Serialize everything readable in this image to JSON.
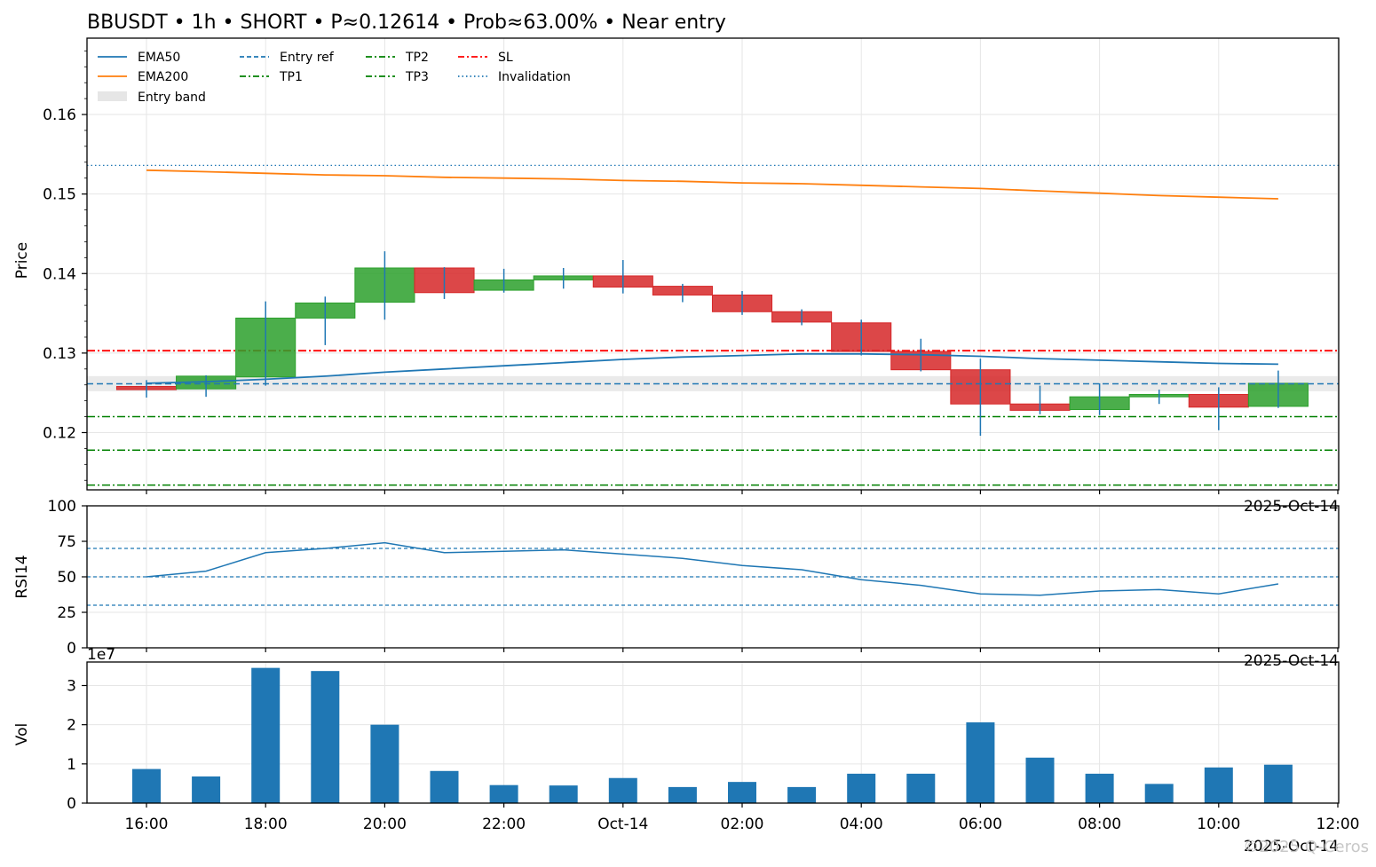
{
  "title": "BBUSDT • 1h • SHORT • P≈0.12614 • Prob≈63.00% • Near entry",
  "watermark": "©2025 Q-Ceros",
  "colors": {
    "bull": "#2ca02c",
    "bear": "#d62728",
    "wick": "#1f77b4",
    "ema50": "#1f77b4",
    "ema200": "#ff7f0e",
    "entry": "#1f77b4",
    "tp": "#008000",
    "sl": "#ff0000",
    "invalidation": "#1f77b4",
    "band": "#e6e6e6",
    "volume": "#1f77b4",
    "rsi": "#1f77b4"
  },
  "time_labels": [
    "16:00",
    "18:00",
    "20:00",
    "22:00",
    "Oct-14",
    "02:00",
    "04:00",
    "06:00",
    "08:00",
    "10:00",
    "12:00"
  ],
  "date_label": "2025-Oct-14",
  "chart_data": [
    {
      "type": "candlestick",
      "panel": "price",
      "ylabel": "Price",
      "ylim": [
        0.1128,
        0.1696
      ],
      "yticks": [
        "0.12",
        "0.13",
        "0.14",
        "0.15",
        "0.16"
      ],
      "x": [
        "16:00",
        "17:00",
        "18:00",
        "19:00",
        "20:00",
        "21:00",
        "22:00",
        "23:00",
        "00:00",
        "01:00",
        "02:00",
        "03:00",
        "04:00",
        "05:00",
        "06:00",
        "07:00",
        "08:00",
        "09:00",
        "10:00",
        "11:00"
      ],
      "open": [
        0.1258,
        0.1255,
        0.127,
        0.1344,
        0.1364,
        0.1407,
        0.1379,
        0.1392,
        0.1397,
        0.1384,
        0.1373,
        0.1352,
        0.1338,
        0.1302,
        0.1279,
        0.1236,
        0.1229,
        0.1245,
        0.1248,
        0.1233
      ],
      "high": [
        0.1266,
        0.1272,
        0.1365,
        0.1371,
        0.1428,
        0.1408,
        0.1406,
        0.1407,
        0.1417,
        0.1387,
        0.1378,
        0.1355,
        0.1342,
        0.1318,
        0.1293,
        0.1259,
        0.1262,
        0.1254,
        0.1257,
        0.1278
      ],
      "low": [
        0.1244,
        0.1245,
        0.1259,
        0.131,
        0.1342,
        0.1368,
        0.1376,
        0.1381,
        0.1375,
        0.1364,
        0.1348,
        0.1335,
        0.1297,
        0.1277,
        0.1196,
        0.1223,
        0.1222,
        0.1236,
        0.1203,
        0.1231
      ],
      "close": [
        0.1254,
        0.1271,
        0.1344,
        0.1363,
        0.1407,
        0.1376,
        0.1392,
        0.1397,
        0.1383,
        0.1373,
        0.1352,
        0.1339,
        0.1302,
        0.1279,
        0.1236,
        0.1228,
        0.1245,
        0.1248,
        0.1232,
        0.1262
      ],
      "ema50": [
        0.1262,
        0.1264,
        0.1267,
        0.1271,
        0.1276,
        0.128,
        0.1284,
        0.1288,
        0.1292,
        0.1295,
        0.1297,
        0.1299,
        0.1299,
        0.1298,
        0.1296,
        0.1293,
        0.1291,
        0.1289,
        0.1287,
        0.1286
      ],
      "ema200": [
        0.153,
        0.1528,
        0.1526,
        0.1524,
        0.1523,
        0.1521,
        0.152,
        0.1519,
        0.1517,
        0.1516,
        0.1514,
        0.1513,
        0.1511,
        0.1509,
        0.1507,
        0.1504,
        0.1501,
        0.1498,
        0.1496,
        0.1494
      ],
      "levels": {
        "entry_ref": 0.12614,
        "entry_band": [
          0.1252,
          0.1271
        ],
        "tp1": 0.122,
        "tp2": 0.1178,
        "tp3": 0.1134,
        "sl": 0.1303,
        "invalidation": 0.1536
      },
      "legend": [
        "EMA50",
        "EMA200",
        "Entry band",
        "Entry ref",
        "TP1",
        "TP2",
        "TP3",
        "SL",
        "Invalidation"
      ],
      "legend_position": "top-left",
      "grid": true
    },
    {
      "type": "line",
      "panel": "rsi",
      "ylabel": "RSI14",
      "ylim": [
        0,
        100
      ],
      "yticks": [
        "0",
        "25",
        "50",
        "75",
        "100"
      ],
      "values": [
        50,
        54,
        67,
        70,
        74,
        67,
        68,
        69,
        66,
        63,
        58,
        55,
        48,
        44,
        38,
        37,
        40,
        41,
        38,
        45
      ],
      "reference_lines": [
        70,
        50,
        30
      ],
      "grid": true
    },
    {
      "type": "bar",
      "panel": "volume",
      "ylabel": "Vol",
      "scale_label": "1e7",
      "ylim": [
        0,
        3.6
      ],
      "yticks": [
        "0",
        "1",
        "2",
        "3"
      ],
      "values": [
        0.87,
        0.68,
        3.45,
        3.37,
        2.0,
        0.82,
        0.46,
        0.45,
        0.64,
        0.41,
        0.54,
        0.41,
        0.75,
        0.75,
        2.06,
        1.16,
        0.75,
        0.49,
        0.91,
        0.98
      ],
      "grid": true
    }
  ]
}
